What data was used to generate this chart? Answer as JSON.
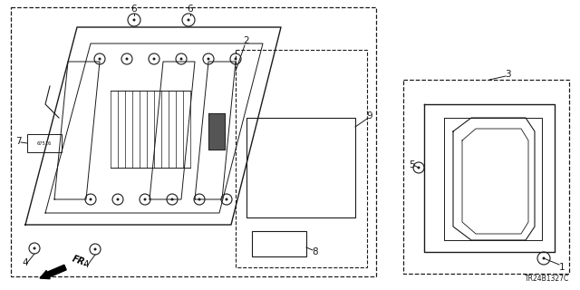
{
  "bg_color": "#ffffff",
  "line_color": "#1a1a1a",
  "diagram_code": "TR24B1327C",
  "figsize": [
    6.4,
    3.2
  ],
  "dpi": 100
}
